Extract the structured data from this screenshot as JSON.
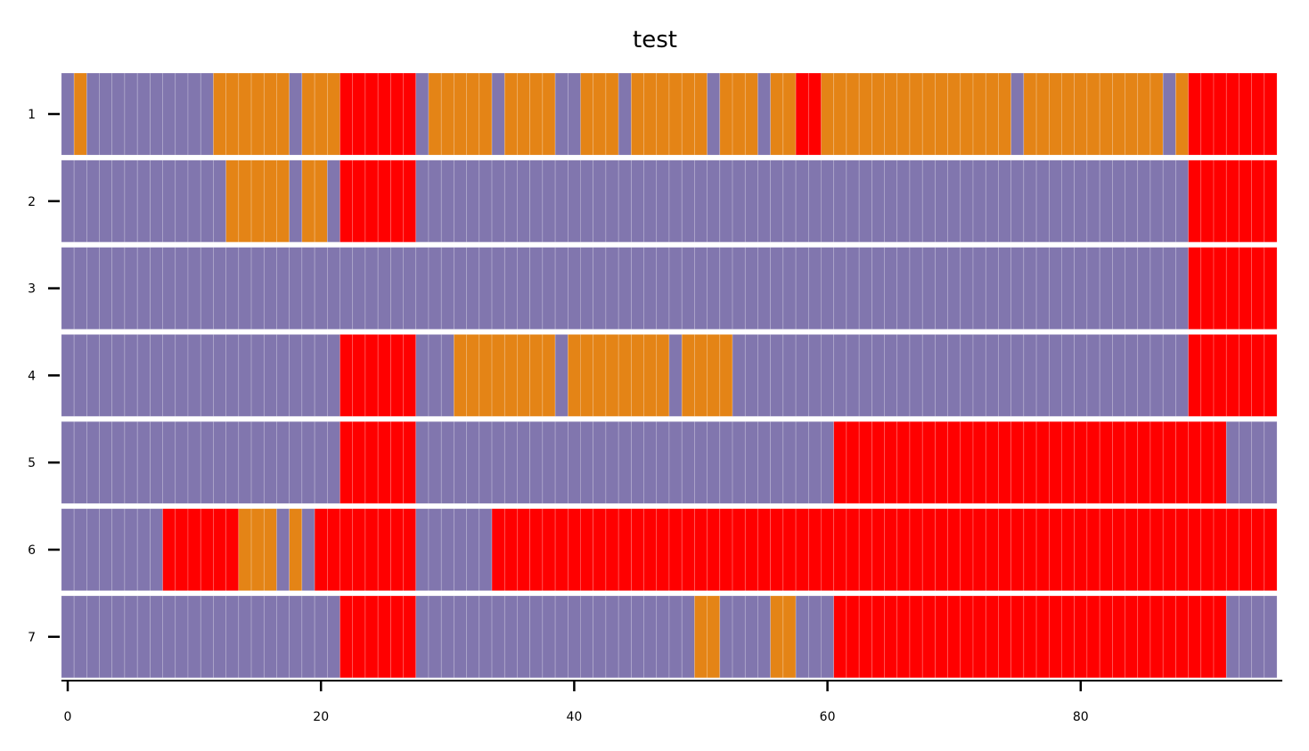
{
  "chart_data": {
    "type": "heatmap",
    "title": "test",
    "xlabel": "",
    "ylabel": "",
    "x_ticks": [
      0,
      20,
      40,
      60,
      80
    ],
    "xlim": [
      -0.5,
      95.5
    ],
    "grid": false,
    "legend": "none",
    "colors": {
      "A": "#8176ae",
      "B": "#e48416",
      "C": "#ff0000"
    },
    "row_labels": [
      "1",
      "2",
      "3",
      "4",
      "5",
      "6",
      "7"
    ],
    "rows": [
      {
        "label": "1",
        "segments": [
          [
            "A",
            0,
            0
          ],
          [
            "B",
            1,
            1
          ],
          [
            "A",
            2,
            11
          ],
          [
            "B",
            12,
            17
          ],
          [
            "A",
            18,
            18
          ],
          [
            "B",
            19,
            21
          ],
          [
            "C",
            22,
            27
          ],
          [
            "A",
            28,
            28
          ],
          [
            "B",
            29,
            33
          ],
          [
            "A",
            34,
            34
          ],
          [
            "B",
            35,
            38
          ],
          [
            "A",
            39,
            40
          ],
          [
            "B",
            41,
            43
          ],
          [
            "A",
            44,
            44
          ],
          [
            "B",
            45,
            50
          ],
          [
            "A",
            51,
            51
          ],
          [
            "B",
            52,
            54
          ],
          [
            "A",
            55,
            55
          ],
          [
            "B",
            56,
            57
          ],
          [
            "C",
            58,
            59
          ],
          [
            "B",
            60,
            74
          ],
          [
            "A",
            75,
            75
          ],
          [
            "B",
            76,
            86
          ],
          [
            "A",
            87,
            87
          ],
          [
            "B",
            88,
            88
          ],
          [
            "C",
            89,
            95
          ]
        ]
      },
      {
        "label": "2",
        "segments": [
          [
            "A",
            0,
            12
          ],
          [
            "B",
            13,
            17
          ],
          [
            "A",
            18,
            18
          ],
          [
            "B",
            19,
            20
          ],
          [
            "A",
            21,
            21
          ],
          [
            "C",
            22,
            27
          ],
          [
            "A",
            28,
            88
          ],
          [
            "C",
            89,
            95
          ]
        ]
      },
      {
        "label": "3",
        "segments": [
          [
            "A",
            0,
            88
          ],
          [
            "C",
            89,
            95
          ]
        ]
      },
      {
        "label": "4",
        "segments": [
          [
            "A",
            0,
            21
          ],
          [
            "C",
            22,
            27
          ],
          [
            "A",
            28,
            30
          ],
          [
            "B",
            31,
            38
          ],
          [
            "A",
            39,
            39
          ],
          [
            "B",
            40,
            47
          ],
          [
            "A",
            48,
            48
          ],
          [
            "B",
            49,
            52
          ],
          [
            "A",
            53,
            88
          ],
          [
            "C",
            89,
            95
          ]
        ]
      },
      {
        "label": "5",
        "segments": [
          [
            "A",
            0,
            21
          ],
          [
            "C",
            22,
            27
          ],
          [
            "A",
            28,
            60
          ],
          [
            "C",
            61,
            91
          ],
          [
            "A",
            92,
            95
          ]
        ]
      },
      {
        "label": "6",
        "segments": [
          [
            "A",
            0,
            7
          ],
          [
            "C",
            8,
            13
          ],
          [
            "B",
            14,
            16
          ],
          [
            "A",
            17,
            17
          ],
          [
            "B",
            18,
            18
          ],
          [
            "A",
            19,
            19
          ],
          [
            "C",
            20,
            27
          ],
          [
            "A",
            28,
            33
          ],
          [
            "C",
            34,
            95
          ]
        ]
      },
      {
        "label": "7",
        "segments": [
          [
            "A",
            0,
            21
          ],
          [
            "C",
            22,
            27
          ],
          [
            "A",
            28,
            49
          ],
          [
            "B",
            50,
            51
          ],
          [
            "A",
            52,
            55
          ],
          [
            "B",
            56,
            57
          ],
          [
            "A",
            58,
            60
          ],
          [
            "C",
            61,
            91
          ],
          [
            "A",
            92,
            95
          ]
        ]
      }
    ]
  }
}
